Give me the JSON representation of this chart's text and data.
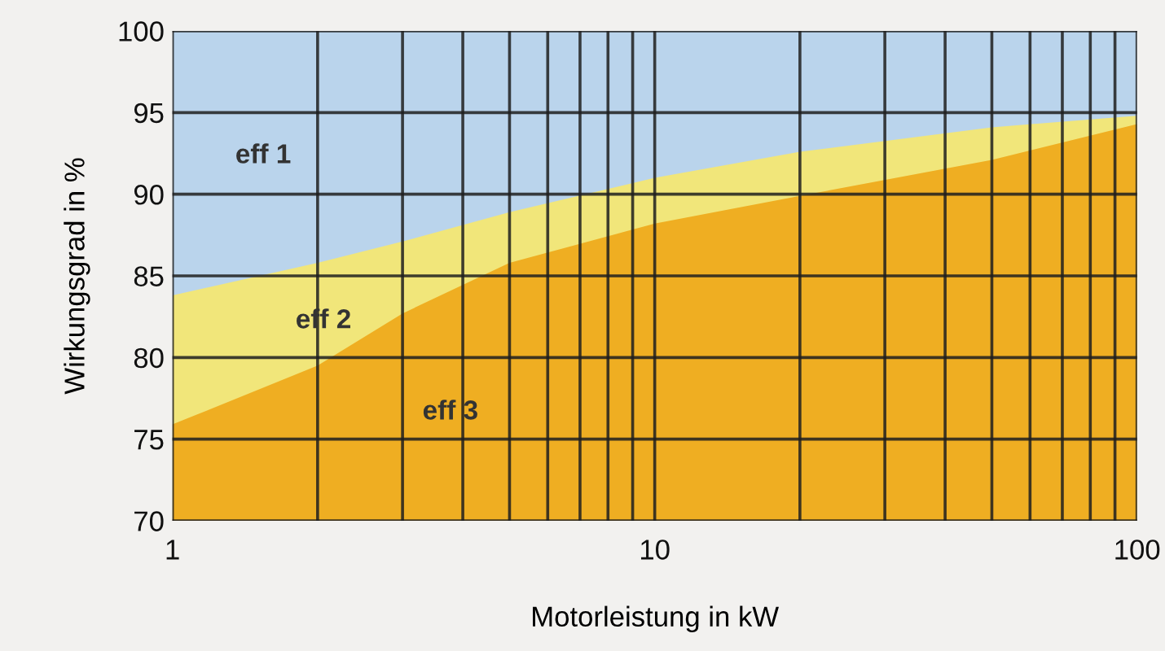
{
  "chart_data": {
    "type": "area",
    "xlabel": "Motorleistung in kW",
    "ylabel": "Wirkungsgrad in %",
    "x": [
      1,
      2,
      3,
      5,
      10,
      20,
      50,
      100
    ],
    "series": [
      {
        "name": "eff 1",
        "color": "#bad4ec",
        "values": [
          100,
          100,
          100,
          100,
          100,
          100,
          100,
          100
        ]
      },
      {
        "name": "eff 2",
        "color": "#f1e67a",
        "values": [
          83.8,
          85.8,
          87.1,
          88.9,
          91.0,
          92.6,
          94.1,
          94.8
        ]
      },
      {
        "name": "eff 3",
        "color": "#efae22",
        "values": [
          75.9,
          79.5,
          82.7,
          85.8,
          88.2,
          89.9,
          92.1,
          94.3
        ]
      }
    ],
    "log": "x",
    "xlim": [
      1,
      100
    ],
    "xticks": [
      1,
      {
        "value": 2,
        "label": null
      },
      {
        "value": 3,
        "label": null
      },
      {
        "value": 4,
        "label": null
      },
      {
        "value": 5,
        "label": null
      },
      {
        "value": 6,
        "label": null
      },
      {
        "value": 7,
        "label": null
      },
      {
        "value": 8,
        "label": null
      },
      {
        "value": 9,
        "label": null
      },
      10,
      {
        "value": 20,
        "label": null
      },
      {
        "value": 30,
        "label": null
      },
      {
        "value": 40,
        "label": null
      },
      {
        "value": 50,
        "label": null
      },
      {
        "value": 60,
        "label": null
      },
      {
        "value": 70,
        "label": null
      },
      {
        "value": 80,
        "label": null
      },
      {
        "value": 90,
        "label": null
      },
      100
    ],
    "ylim": [
      70,
      100
    ],
    "yticks": [
      70,
      75,
      80,
      85,
      90,
      95,
      100
    ],
    "grid": true,
    "legend": false
  }
}
